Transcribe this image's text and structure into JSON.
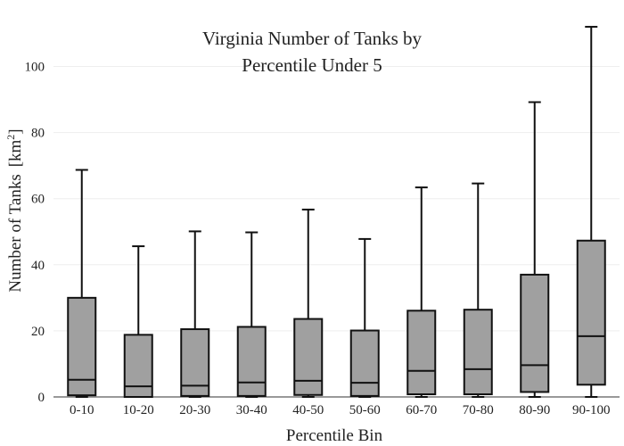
{
  "chart_data": {
    "type": "box",
    "title_lines": [
      "Virginia Number of Tanks by",
      "Percentile Under 5"
    ],
    "xlabel": "Percentile Bin",
    "ylabel": "Number of Tanks",
    "ylabel_unit_base": "[km",
    "ylabel_unit_sup": "2",
    "ylabel_unit_close": "]",
    "ylim": [
      0,
      112
    ],
    "yticks": [
      0,
      20,
      40,
      60,
      80,
      100
    ],
    "grid": true,
    "legend": "none",
    "colors": {
      "box_fill": "#a0a0a0",
      "stroke": "#111111",
      "grid": "#eeeeee",
      "text": "#222222"
    },
    "categories": [
      "0-10",
      "10-20",
      "20-30",
      "30-40",
      "40-50",
      "50-60",
      "60-70",
      "70-80",
      "80-90",
      "90-100"
    ],
    "boxes": [
      {
        "min": 0,
        "q1": 0.5,
        "median": 5.2,
        "q3": 30,
        "max": 68.7
      },
      {
        "min": 0,
        "q1": 0,
        "median": 3.2,
        "q3": 18.8,
        "max": 45.6
      },
      {
        "min": 0,
        "q1": 0.3,
        "median": 3.4,
        "q3": 20.5,
        "max": 50.1
      },
      {
        "min": 0,
        "q1": 0.3,
        "median": 4.4,
        "q3": 21.2,
        "max": 49.8
      },
      {
        "min": 0,
        "q1": 0.6,
        "median": 4.9,
        "q3": 23.6,
        "max": 56.7
      },
      {
        "min": 0,
        "q1": 0.3,
        "median": 4.3,
        "q3": 20.1,
        "max": 47.8
      },
      {
        "min": 0,
        "q1": 0.8,
        "median": 7.9,
        "q3": 26.1,
        "max": 63.4
      },
      {
        "min": 0,
        "q1": 0.8,
        "median": 8.4,
        "q3": 26.4,
        "max": 64.6
      },
      {
        "min": 0,
        "q1": 1.5,
        "median": 9.6,
        "q3": 37,
        "max": 89.2
      },
      {
        "min": 0,
        "q1": 3.7,
        "median": 18.4,
        "q3": 47.3,
        "max": 112
      }
    ]
  }
}
